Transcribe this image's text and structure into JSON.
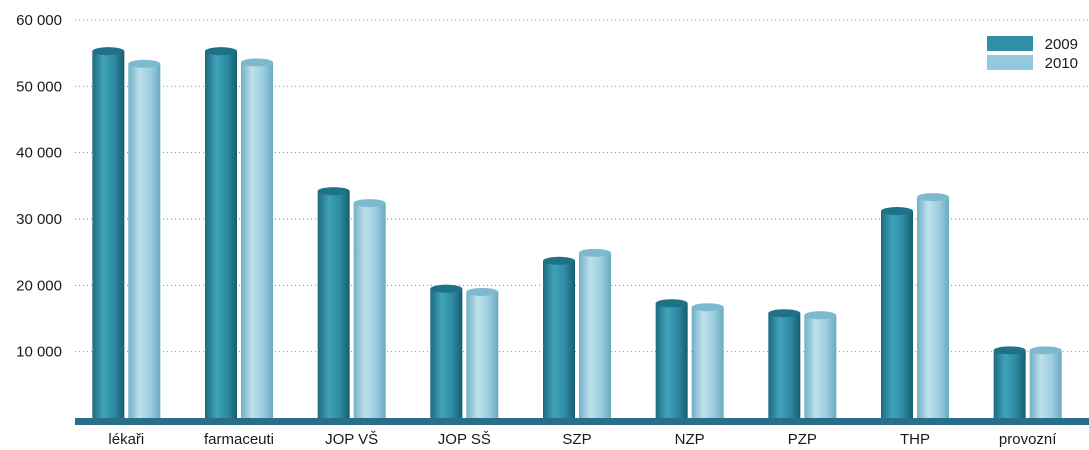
{
  "chart_data": {
    "type": "bar",
    "title": "",
    "xlabel": "",
    "ylabel": "",
    "ylim": [
      0,
      60000
    ],
    "yticks": [
      "10 000",
      "20 000",
      "30 000",
      "40 000",
      "50 000",
      "60 000"
    ],
    "ytick_values": [
      10000,
      20000,
      30000,
      40000,
      50000,
      60000
    ],
    "grid": true,
    "legend_position": "top-right",
    "categories": [
      "lékaři",
      "farmaceuti",
      "JOP VŠ",
      "JOP SŠ",
      "SZP",
      "NZP",
      "PZP",
      "THP",
      "provozní"
    ],
    "series": [
      {
        "name": "2009",
        "color": "#2f8fa6",
        "values": [
          55300,
          55300,
          34200,
          19500,
          23700,
          17300,
          15800,
          31200,
          10200
        ]
      },
      {
        "name": "2010",
        "color": "#93c9dc",
        "values": [
          53400,
          53600,
          32400,
          19000,
          24900,
          16700,
          15500,
          33300,
          10200
        ]
      }
    ],
    "axis_color": "#2a6f8a"
  }
}
